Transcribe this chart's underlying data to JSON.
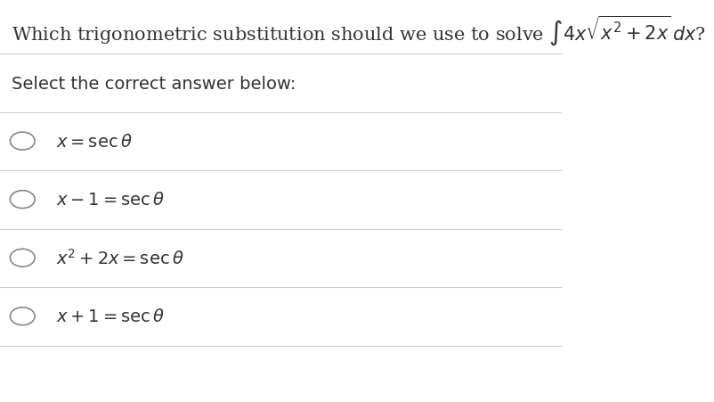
{
  "background_color": "#ffffff",
  "title_text": "Which trigonometric substitution should we use to solve ",
  "title_math": "\\int 4x\\sqrt{x^2 + 2x}\\, dx?",
  "subtitle": "Select the correct answer below:",
  "options": [
    "$x = \\sec\\theta$",
    "$x - 1 = \\sec\\theta$",
    "$x^2 + 2x = \\sec\\theta$",
    "$x + 1 = \\sec\\theta$"
  ],
  "divider_color": "#cccccc",
  "text_color": "#333333",
  "circle_color": "#888888",
  "title_fontsize": 15,
  "subtitle_fontsize": 14,
  "option_fontsize": 14,
  "fig_width": 8.02,
  "fig_height": 4.52,
  "dpi": 100
}
